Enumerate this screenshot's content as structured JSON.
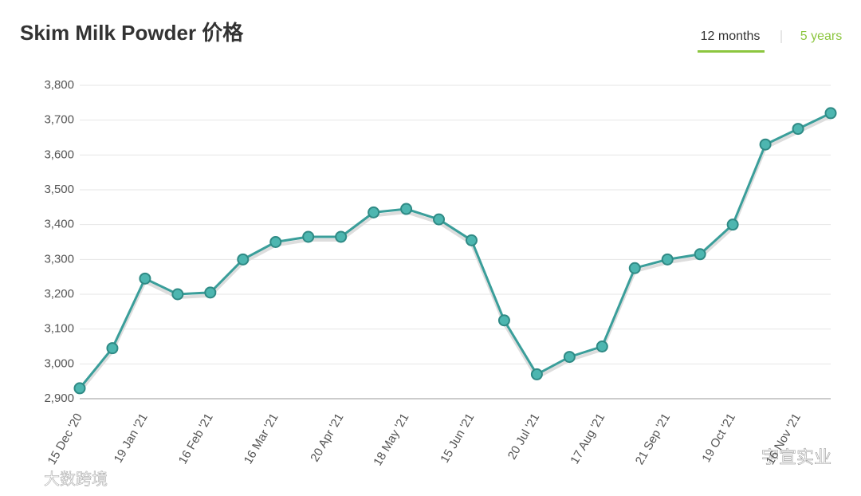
{
  "tabs": [
    "12 months",
    "5 years"
  ],
  "watermarks": [
    "宇宣实业",
    "大数跨境"
  ],
  "chart_data": {
    "type": "line",
    "title": "Skim Milk Powder 价格",
    "categories": [
      "15 Dec '20",
      null,
      "19 Jan '21",
      null,
      "16 Feb '21",
      null,
      "16 Mar '21",
      null,
      "20 Apr '21",
      null,
      "18 May '21",
      null,
      "15 Jun '21",
      null,
      "20 Jul '21",
      null,
      "17 Aug '21",
      null,
      "21 Sep '21",
      null,
      "19 Oct '21",
      null,
      "16 Nov '21",
      null
    ],
    "series": [
      {
        "name": "Skim Milk Powder",
        "color": "#3a9e9a",
        "values": [
          2930,
          3045,
          3245,
          3200,
          3205,
          3300,
          3350,
          3365,
          3365,
          3435,
          3445,
          3415,
          3355,
          3125,
          2970,
          3020,
          3050,
          3275,
          3300,
          3315,
          3400,
          3630,
          3675,
          3720
        ]
      }
    ],
    "ylim": [
      2900,
      3800
    ],
    "yticks": [
      {
        "value": 2900,
        "label": "2,900"
      },
      {
        "value": 3000,
        "label": "3,000"
      },
      {
        "value": 3100,
        "label": "3,100"
      },
      {
        "value": 3200,
        "label": "3,200"
      },
      {
        "value": 3300,
        "label": "3,300"
      },
      {
        "value": 3400,
        "label": "3,400"
      },
      {
        "value": 3500,
        "label": "3,500"
      },
      {
        "value": 3600,
        "label": "3,600"
      },
      {
        "value": 3700,
        "label": "3,700"
      },
      {
        "value": 3800,
        "label": "3,800"
      }
    ],
    "grid": true
  }
}
